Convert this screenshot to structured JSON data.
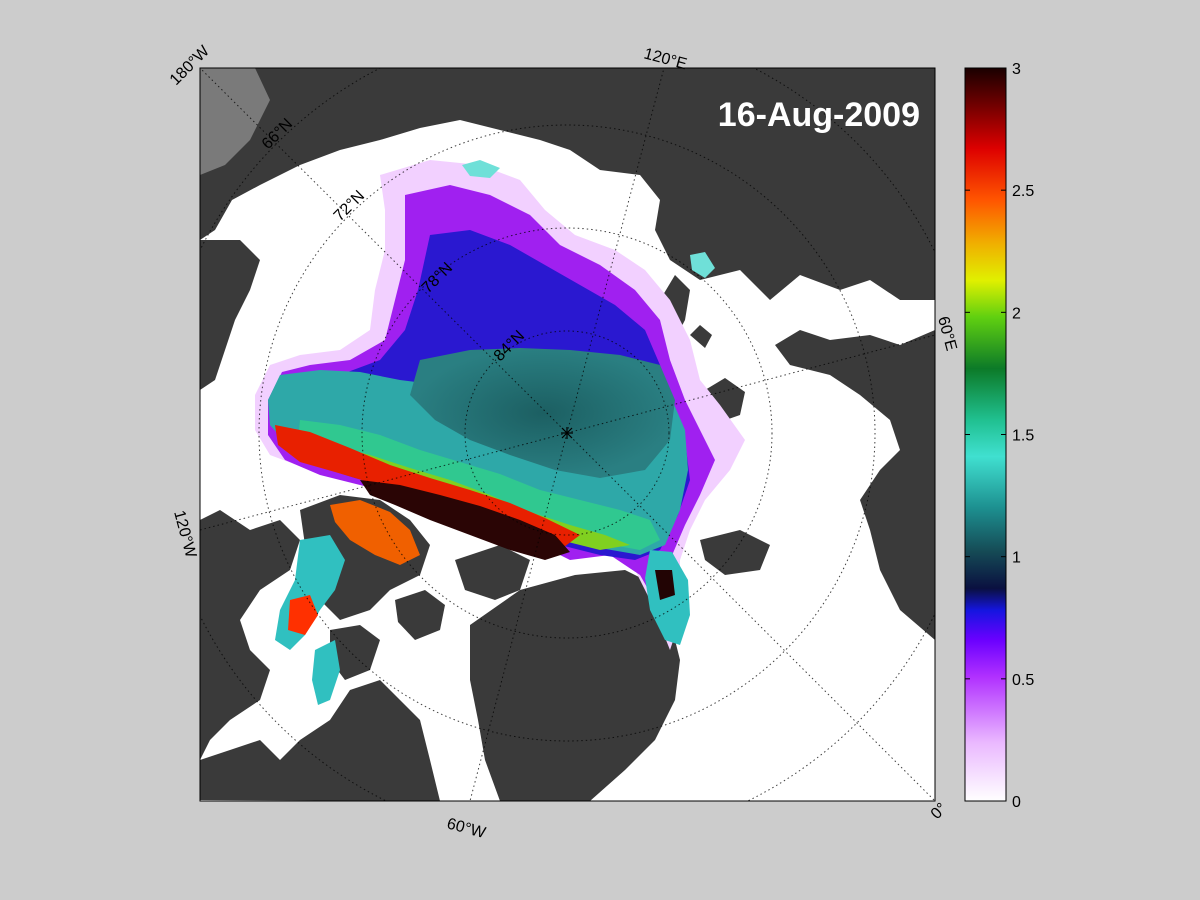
{
  "map": {
    "date": "16-Aug-2009",
    "pole_marker": "pole-star-icon",
    "longitude_labels": {
      "lon_180w": "180°W",
      "lon_120e": "120°E",
      "lon_60e": "60°E",
      "lon_120w": "120°W",
      "lon_60w": "60°W",
      "lon_0": "0°"
    },
    "latitude_labels": {
      "lat_66n": "66°N",
      "lat_72n": "72°N",
      "lat_78n": "78°N",
      "lat_84n": "84°N"
    },
    "colors": {
      "background": "#cccccc",
      "land": "#3a3a3a",
      "open_water": "#ffffff",
      "out_of_domain": "#7a7a7a"
    }
  },
  "colorbar": {
    "ticks": [
      "0",
      "0.5",
      "1",
      "1.5",
      "2",
      "2.5",
      "3"
    ],
    "range": [
      0,
      3
    ]
  }
}
